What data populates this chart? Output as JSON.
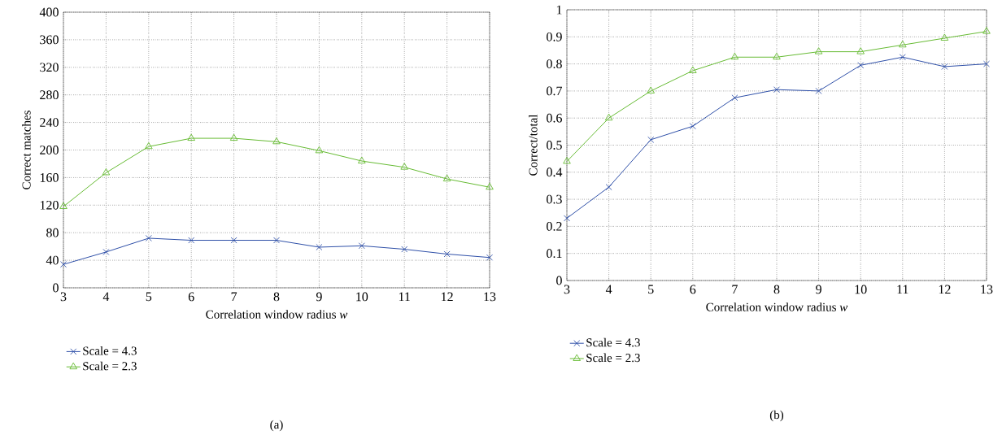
{
  "chart_data": [
    {
      "type": "line",
      "xlabel": "Correlation window radius *w*",
      "ylabel": "Correct matches",
      "x": [
        3,
        4,
        5,
        6,
        7,
        8,
        9,
        10,
        11,
        12,
        13
      ],
      "series": [
        {
          "name": "Scale = 4.3",
          "color": "#2e4fa8",
          "marker": "cross",
          "values": [
            34,
            52,
            72,
            69,
            69,
            69,
            59,
            61,
            56,
            49,
            44
          ]
        },
        {
          "name": "Scale = 2.3",
          "color": "#66bb33",
          "marker": "triangle",
          "values": [
            118,
            167,
            205,
            217,
            217,
            212,
            199,
            184,
            175,
            158,
            146
          ]
        }
      ],
      "xlim": [
        3,
        13
      ],
      "xticks": [
        3,
        4,
        5,
        6,
        7,
        8,
        9,
        10,
        11,
        12,
        13
      ],
      "ylim": [
        0,
        400
      ],
      "yticks": [
        0,
        40,
        80,
        120,
        160,
        200,
        240,
        280,
        320,
        360,
        400
      ],
      "grid": true,
      "legend": "bottom left",
      "line_style": "solid",
      "annotations": [
        "(a)"
      ]
    },
    {
      "type": "line",
      "xlabel": "Correlation window radius *w*",
      "ylabel": "Correct/total",
      "x": [
        3,
        4,
        5,
        6,
        7,
        8,
        9,
        10,
        11,
        12,
        13
      ],
      "series": [
        {
          "name": "Scale = 4.3",
          "color": "#2e4fa8",
          "marker": "cross",
          "values": [
            0.23,
            0.345,
            0.52,
            0.57,
            0.675,
            0.705,
            0.7,
            0.795,
            0.825,
            0.79,
            0.8
          ]
        },
        {
          "name": "Scale = 2.3",
          "color": "#66bb33",
          "marker": "triangle",
          "values": [
            0.44,
            0.6,
            0.7,
            0.775,
            0.825,
            0.825,
            0.845,
            0.845,
            0.87,
            0.895,
            0.92
          ]
        }
      ],
      "xlim": [
        3,
        13
      ],
      "xticks": [
        3,
        4,
        5,
        6,
        7,
        8,
        9,
        10,
        11,
        12,
        13
      ],
      "ylim": [
        0,
        1
      ],
      "yticks": [
        0,
        0.1,
        0.2,
        0.3,
        0.4,
        0.5,
        0.6,
        0.7,
        0.8,
        0.9,
        1
      ],
      "grid": true,
      "legend": "bottom left",
      "line_style": "solid",
      "annotations": [
        "(b)"
      ]
    }
  ]
}
